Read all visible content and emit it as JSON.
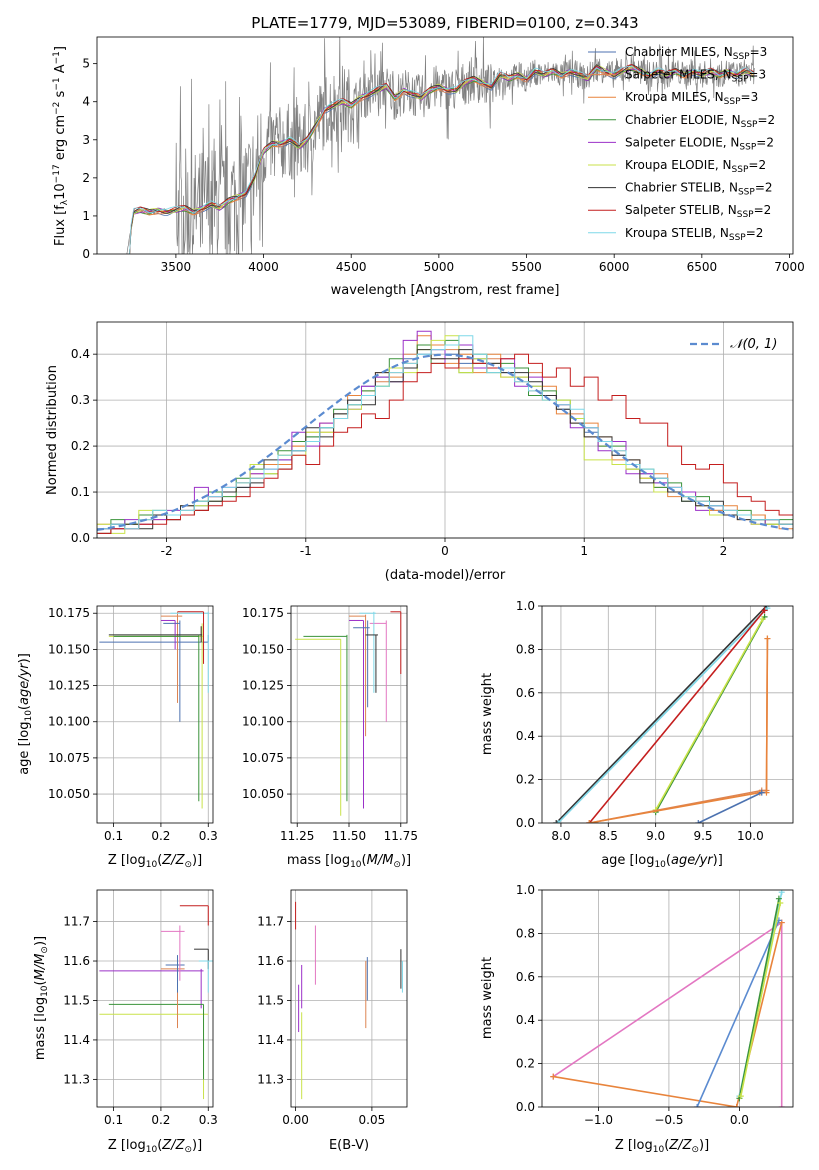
{
  "figure": {
    "title": "PLATE=1779, MJD=53089, FIBERID=0100, z=0.343"
  },
  "colors": {
    "Chabrier MILES": "#4c72b0",
    "Salpeter MILES": "#dd8452",
    "Kroupa MILES": "#e8843c",
    "Chabrier ELODIE": "#3a923a",
    "Salpeter ELODIE": "#9b30c8",
    "Kroupa ELODIE": "#c9e24a",
    "Chabrier STELIB": "#333333",
    "Salpeter STELIB": "#c41e1e",
    "Kroupa STELIB": "#7fd8e8",
    "data": "#7f7f7f",
    "normal": "#5b8bd0",
    "pink": "#e377c2",
    "blue": "#5b8bd0",
    "orange": "#e8843c",
    "grid": "#b0b0b0"
  },
  "chart_data": [
    {
      "type": "line",
      "panel": "spectrum",
      "title": "PLATE=1779, MJD=53089, FIBERID=0100, z=0.343",
      "xlabel": "wavelength [Angstrom, rest frame]",
      "ylabel": "Flux [f_λ 10^-17 erg cm^-2 s^-1 A^-1]",
      "xlim": [
        3050,
        7020
      ],
      "ylim": [
        0,
        5.7
      ],
      "xticks": [
        3500,
        4000,
        4500,
        5000,
        5500,
        6000,
        6500,
        7000
      ],
      "yticks": [
        0,
        1,
        2,
        3,
        4,
        5
      ],
      "grid": false,
      "legend_position": "upper-right",
      "data_series": {
        "name": "data",
        "x": [
          3220,
          3260,
          3300,
          3350,
          3400,
          3450,
          3500,
          3550,
          3600,
          3650,
          3700,
          3750,
          3800,
          3850,
          3900,
          3950,
          4000,
          4050,
          4100,
          4150,
          4200,
          4250,
          4300,
          4350,
          4400,
          4450,
          4500,
          4550,
          4600,
          4650,
          4700,
          4750,
          4800,
          4850,
          4900,
          4950,
          5000,
          5050,
          5100,
          5150,
          5200,
          5250,
          5300,
          5350,
          5400,
          5450,
          5500,
          5550,
          5600,
          5650,
          5700,
          5750,
          5800,
          5850,
          5900,
          5950,
          6000,
          6050,
          6100,
          6150,
          6200,
          6250,
          6300,
          6350,
          6400,
          6450,
          6500,
          6550,
          6600,
          6650,
          6700,
          6750,
          6800
        ],
        "y": [
          0.0,
          1.1,
          1.15,
          1.1,
          1.15,
          1.1,
          1.15,
          1.2,
          1.1,
          1.2,
          1.3,
          1.2,
          1.4,
          1.5,
          1.6,
          2.0,
          2.7,
          2.9,
          2.9,
          3.0,
          2.8,
          3.0,
          3.4,
          3.8,
          3.9,
          4.0,
          3.9,
          4.1,
          4.2,
          4.3,
          4.4,
          4.1,
          4.3,
          4.2,
          4.1,
          4.3,
          4.4,
          4.3,
          4.3,
          4.5,
          4.6,
          4.5,
          4.4,
          4.7,
          4.6,
          4.7,
          4.6,
          4.8,
          4.7,
          4.8,
          4.7,
          4.8,
          4.7,
          4.6,
          4.9,
          4.8,
          4.7,
          4.8,
          4.9,
          4.8,
          4.7,
          4.8,
          4.7,
          4.8,
          4.7,
          4.8,
          4.7,
          4.8,
          4.7,
          4.8,
          4.7,
          4.8,
          4.7
        ]
      },
      "model_series": [
        {
          "name": "Chabrier MILES, N_SSP=3",
          "label_main": "Chabrier MILES, N",
          "label_sub": "SSP",
          "label_end": "=3"
        },
        {
          "name": "Salpeter MILES, N_SSP=3",
          "label_main": "Salpeter MILES, N",
          "label_sub": "SSP",
          "label_end": "=3"
        },
        {
          "name": "Kroupa MILES, N_SSP=3",
          "label_main": "Kroupa MILES, N",
          "label_sub": "SSP",
          "label_end": "=3"
        },
        {
          "name": "Chabrier ELODIE, N_SSP=2",
          "label_main": "Chabrier ELODIE, N",
          "label_sub": "SSP",
          "label_end": "=2"
        },
        {
          "name": "Salpeter ELODIE, N_SSP=2",
          "label_main": "Salpeter ELODIE, N",
          "label_sub": "SSP",
          "label_end": "=2"
        },
        {
          "name": "Kroupa ELODIE, N_SSP=2",
          "label_main": "Kroupa ELODIE, N",
          "label_sub": "SSP",
          "label_end": "=2"
        },
        {
          "name": "Chabrier STELIB, N_SSP=2",
          "label_main": "Chabrier STELIB, N",
          "label_sub": "SSP",
          "label_end": "=2"
        },
        {
          "name": "Salpeter STELIB, N_SSP=2",
          "label_main": "Salpeter STELIB, N",
          "label_sub": "SSP",
          "label_end": "=2"
        },
        {
          "name": "Kroupa STELIB, N_SSP=2",
          "label_main": "Kroupa STELIB, N",
          "label_sub": "SSP",
          "label_end": "=2"
        }
      ]
    },
    {
      "type": "line",
      "panel": "residuals",
      "xlabel": "(data-model)/error",
      "ylabel": "Normed distribution",
      "xlim": [
        -2.5,
        2.5
      ],
      "ylim": [
        0,
        0.47
      ],
      "xticks": [
        -2,
        -1,
        0,
        1,
        2
      ],
      "yticks": [
        0.0,
        0.1,
        0.2,
        0.3,
        0.4
      ],
      "grid": true,
      "legend": "𝒩(0, 1)",
      "legend_position": "upper-right",
      "bin_edges": [
        -2.5,
        -2.4,
        -2.3,
        -2.2,
        -2.1,
        -2.0,
        -1.9,
        -1.8,
        -1.7,
        -1.6,
        -1.5,
        -1.4,
        -1.3,
        -1.2,
        -1.1,
        -1.0,
        -0.9,
        -0.8,
        -0.7,
        -0.6,
        -0.5,
        -0.4,
        -0.3,
        -0.2,
        -0.1,
        0.0,
        0.1,
        0.2,
        0.3,
        0.4,
        0.5,
        0.6,
        0.7,
        0.8,
        0.9,
        1.0,
        1.1,
        1.2,
        1.3,
        1.4,
        1.5,
        1.6,
        1.7,
        1.8,
        1.9,
        2.0,
        2.1,
        2.2,
        2.3,
        2.4,
        2.5
      ],
      "histograms": [
        [
          0.02,
          0.03,
          0.02,
          0.04,
          0.05,
          0.04,
          0.06,
          0.07,
          0.08,
          0.1,
          0.11,
          0.13,
          0.15,
          0.17,
          0.19,
          0.22,
          0.24,
          0.27,
          0.3,
          0.33,
          0.35,
          0.37,
          0.39,
          0.4,
          0.41,
          0.4,
          0.38,
          0.39,
          0.37,
          0.36,
          0.35,
          0.33,
          0.31,
          0.28,
          0.26,
          0.23,
          0.21,
          0.18,
          0.16,
          0.14,
          0.12,
          0.1,
          0.09,
          0.08,
          0.07,
          0.06,
          0.05,
          0.04,
          0.04,
          0.03
        ],
        [
          0.03,
          0.02,
          0.03,
          0.04,
          0.04,
          0.05,
          0.06,
          0.08,
          0.09,
          0.1,
          0.12,
          0.14,
          0.16,
          0.18,
          0.2,
          0.21,
          0.23,
          0.26,
          0.29,
          0.32,
          0.34,
          0.36,
          0.4,
          0.42,
          0.39,
          0.41,
          0.37,
          0.38,
          0.39,
          0.35,
          0.34,
          0.36,
          0.3,
          0.29,
          0.27,
          0.22,
          0.2,
          0.19,
          0.15,
          0.13,
          0.11,
          0.11,
          0.09,
          0.07,
          0.06,
          0.06,
          0.05,
          0.05,
          0.03,
          0.03
        ],
        [
          0.01,
          0.02,
          0.03,
          0.03,
          0.05,
          0.04,
          0.07,
          0.06,
          0.09,
          0.1,
          0.12,
          0.13,
          0.16,
          0.16,
          0.2,
          0.23,
          0.25,
          0.26,
          0.31,
          0.31,
          0.36,
          0.35,
          0.38,
          0.44,
          0.42,
          0.38,
          0.4,
          0.36,
          0.4,
          0.37,
          0.35,
          0.32,
          0.33,
          0.27,
          0.25,
          0.25,
          0.22,
          0.17,
          0.17,
          0.13,
          0.14,
          0.09,
          0.1,
          0.08,
          0.06,
          0.07,
          0.04,
          0.05,
          0.04,
          0.02
        ],
        [
          0.02,
          0.04,
          0.03,
          0.05,
          0.06,
          0.05,
          0.05,
          0.08,
          0.1,
          0.09,
          0.13,
          0.15,
          0.14,
          0.19,
          0.21,
          0.22,
          0.24,
          0.28,
          0.29,
          0.32,
          0.33,
          0.39,
          0.37,
          0.42,
          0.38,
          0.43,
          0.36,
          0.4,
          0.36,
          0.38,
          0.37,
          0.31,
          0.32,
          0.3,
          0.26,
          0.24,
          0.2,
          0.2,
          0.15,
          0.15,
          0.11,
          0.12,
          0.08,
          0.09,
          0.07,
          0.05,
          0.06,
          0.04,
          0.03,
          0.04
        ],
        [
          0.02,
          0.02,
          0.04,
          0.03,
          0.04,
          0.06,
          0.07,
          0.11,
          0.09,
          0.11,
          0.12,
          0.14,
          0.15,
          0.17,
          0.23,
          0.2,
          0.25,
          0.27,
          0.28,
          0.33,
          0.35,
          0.34,
          0.43,
          0.45,
          0.41,
          0.37,
          0.42,
          0.37,
          0.38,
          0.39,
          0.33,
          0.35,
          0.31,
          0.29,
          0.24,
          0.24,
          0.19,
          0.21,
          0.14,
          0.14,
          0.12,
          0.11,
          0.1,
          0.06,
          0.07,
          0.05,
          0.05,
          0.03,
          0.04,
          0.03
        ],
        [
          0.03,
          0.01,
          0.03,
          0.06,
          0.05,
          0.05,
          0.07,
          0.07,
          0.08,
          0.1,
          0.12,
          0.16,
          0.14,
          0.18,
          0.18,
          0.23,
          0.23,
          0.27,
          0.28,
          0.31,
          0.33,
          0.37,
          0.36,
          0.41,
          0.43,
          0.44,
          0.36,
          0.39,
          0.38,
          0.35,
          0.35,
          0.33,
          0.3,
          0.3,
          0.26,
          0.17,
          0.17,
          0.16,
          0.15,
          0.13,
          0.1,
          0.1,
          0.09,
          0.07,
          0.05,
          0.05,
          0.05,
          0.03,
          0.03,
          0.03
        ],
        [
          0.01,
          0.03,
          0.03,
          0.02,
          0.05,
          0.04,
          0.07,
          0.06,
          0.08,
          0.1,
          0.11,
          0.12,
          0.17,
          0.15,
          0.19,
          0.24,
          0.22,
          0.27,
          0.3,
          0.29,
          0.36,
          0.34,
          0.37,
          0.41,
          0.39,
          0.39,
          0.41,
          0.38,
          0.38,
          0.36,
          0.36,
          0.34,
          0.31,
          0.28,
          0.25,
          0.22,
          0.22,
          0.18,
          0.17,
          0.12,
          0.13,
          0.1,
          0.08,
          0.07,
          0.08,
          0.05,
          0.04,
          0.04,
          0.04,
          0.03
        ],
        [
          0.01,
          0.02,
          0.02,
          0.03,
          0.03,
          0.04,
          0.05,
          0.06,
          0.07,
          0.08,
          0.09,
          0.11,
          0.13,
          0.15,
          0.18,
          0.16,
          0.2,
          0.23,
          0.24,
          0.27,
          0.26,
          0.3,
          0.34,
          0.36,
          0.38,
          0.37,
          0.39,
          0.38,
          0.37,
          0.39,
          0.4,
          0.38,
          0.35,
          0.37,
          0.33,
          0.35,
          0.3,
          0.31,
          0.26,
          0.25,
          0.25,
          0.2,
          0.16,
          0.15,
          0.16,
          0.12,
          0.09,
          0.08,
          0.06,
          0.05
        ],
        [
          0.02,
          0.03,
          0.02,
          0.04,
          0.06,
          0.05,
          0.06,
          0.08,
          0.09,
          0.11,
          0.12,
          0.13,
          0.15,
          0.18,
          0.19,
          0.21,
          0.24,
          0.26,
          0.29,
          0.31,
          0.33,
          0.36,
          0.38,
          0.4,
          0.41,
          0.42,
          0.44,
          0.4,
          0.36,
          0.37,
          0.34,
          0.32,
          0.3,
          0.29,
          0.28,
          0.24,
          0.21,
          0.19,
          0.16,
          0.15,
          0.13,
          0.11,
          0.09,
          0.08,
          0.07,
          0.06,
          0.05,
          0.04,
          0.04,
          0.03
        ]
      ]
    },
    {
      "type": "scatter",
      "panel": "age-vs-Z",
      "xlabel": "Z [log10(Z/Z⊙)]",
      "ylabel": "age [log10(age/yr)]",
      "xlim": [
        0.065,
        0.31
      ],
      "ylim": [
        10.03,
        10.18
      ],
      "xticks": [
        0.1,
        0.2,
        0.3
      ],
      "yticks": [
        10.05,
        10.075,
        10.1,
        10.125,
        10.15,
        10.175
      ],
      "grid": true
    },
    {
      "type": "scatter",
      "panel": "age-vs-mass",
      "xlabel": "mass [log10(M/M⊙)]",
      "xlim": [
        11.22,
        11.78
      ],
      "ylim": [
        10.03,
        10.18
      ],
      "xticks": [
        11.25,
        11.5,
        11.75
      ],
      "yticks": [
        10.05,
        10.075,
        10.1,
        10.125,
        10.15,
        10.175
      ],
      "grid": true
    },
    {
      "type": "line",
      "panel": "massweight-vs-age",
      "xlabel": "age [log10(age/yr)]",
      "ylabel": "mass weight",
      "xlim": [
        7.8,
        10.45
      ],
      "ylim": [
        0,
        1
      ],
      "xticks": [
        8.0,
        8.5,
        9.0,
        9.5,
        10.0
      ],
      "yticks": [
        0.0,
        0.2,
        0.4,
        0.6,
        0.8,
        1.0
      ],
      "grid": true,
      "series": [
        {
          "x": [
            7.95,
            10.17
          ],
          "y": [
            0.0,
            1.0
          ],
          "color": "Chabrier STELIB"
        },
        {
          "x": [
            7.97,
            10.18
          ],
          "y": [
            0.0,
            0.99
          ],
          "color": "Kroupa STELIB"
        },
        {
          "x": [
            8.3,
            10.15
          ],
          "y": [
            0.0,
            0.98
          ],
          "color": "Salpeter STELIB"
        },
        {
          "x": [
            9.0,
            10.15
          ],
          "y": [
            0.05,
            0.95
          ],
          "color": "Chabrier ELODIE"
        },
        {
          "x": [
            9.0,
            10.13
          ],
          "y": [
            0.06,
            0.94
          ],
          "color": "Kroupa ELODIE"
        },
        {
          "x": [
            8.3,
            10.12,
            10.17,
            10.18
          ],
          "y": [
            0.0,
            0.15,
            0.15,
            0.85
          ],
          "color": "Salpeter MILES"
        },
        {
          "x": [
            8.3,
            10.1,
            10.17,
            10.18
          ],
          "y": [
            0.0,
            0.14,
            0.14,
            0.85
          ],
          "color": "Kroupa MILES"
        },
        {
          "x": [
            9.45,
            10.12
          ],
          "y": [
            0.0,
            0.14
          ],
          "color": "Chabrier MILES"
        }
      ]
    },
    {
      "type": "scatter",
      "panel": "mass-vs-Z",
      "xlabel": "Z [log10(Z/Z⊙)]",
      "ylabel": "mass [log10(M/M⊙)]",
      "xlim": [
        0.065,
        0.31
      ],
      "ylim": [
        11.23,
        11.78
      ],
      "xticks": [
        0.1,
        0.2,
        0.3
      ],
      "yticks": [
        11.3,
        11.4,
        11.5,
        11.6,
        11.7
      ],
      "grid": true
    },
    {
      "type": "scatter",
      "panel": "mass-vs-EBV",
      "xlabel": "E(B-V)",
      "xlim": [
        -0.003,
        0.073
      ],
      "ylim": [
        11.23,
        11.78
      ],
      "xticks": [
        0.0,
        0.05
      ],
      "yticks": [
        11.3,
        11.4,
        11.5,
        11.6,
        11.7
      ],
      "grid": true
    },
    {
      "type": "line",
      "panel": "massweight-vs-Z",
      "xlabel": "Z [log10(Z/Z⊙)]",
      "ylabel": "mass weight",
      "xlim": [
        -1.4,
        0.38
      ],
      "ylim": [
        0,
        1
      ],
      "xticks": [
        -1.0,
        -0.5,
        0.0
      ],
      "yticks": [
        0.0,
        0.2,
        0.4,
        0.6,
        0.8,
        1.0
      ],
      "grid": true,
      "series": [
        {
          "x": [
            -1.32,
            0.3,
            0.3
          ],
          "y": [
            0.14,
            0.85,
            0.0
          ],
          "color": "pink"
        },
        {
          "x": [
            -1.32,
            -0.02,
            0.3
          ],
          "y": [
            0.14,
            0.0,
            0.85
          ],
          "color": "orange"
        },
        {
          "x": [
            -0.3,
            0.28
          ],
          "y": [
            0.0,
            0.86
          ],
          "color": "blue"
        },
        {
          "x": [
            0.0,
            0.3
          ],
          "y": [
            0.05,
            0.99
          ],
          "color": "Kroupa STELIB"
        },
        {
          "x": [
            0.0,
            0.28
          ],
          "y": [
            0.04,
            0.96
          ],
          "color": "Chabrier ELODIE"
        },
        {
          "x": [
            0.01,
            0.29
          ],
          "y": [
            0.05,
            0.94
          ],
          "color": "Kroupa ELODIE"
        }
      ]
    }
  ]
}
